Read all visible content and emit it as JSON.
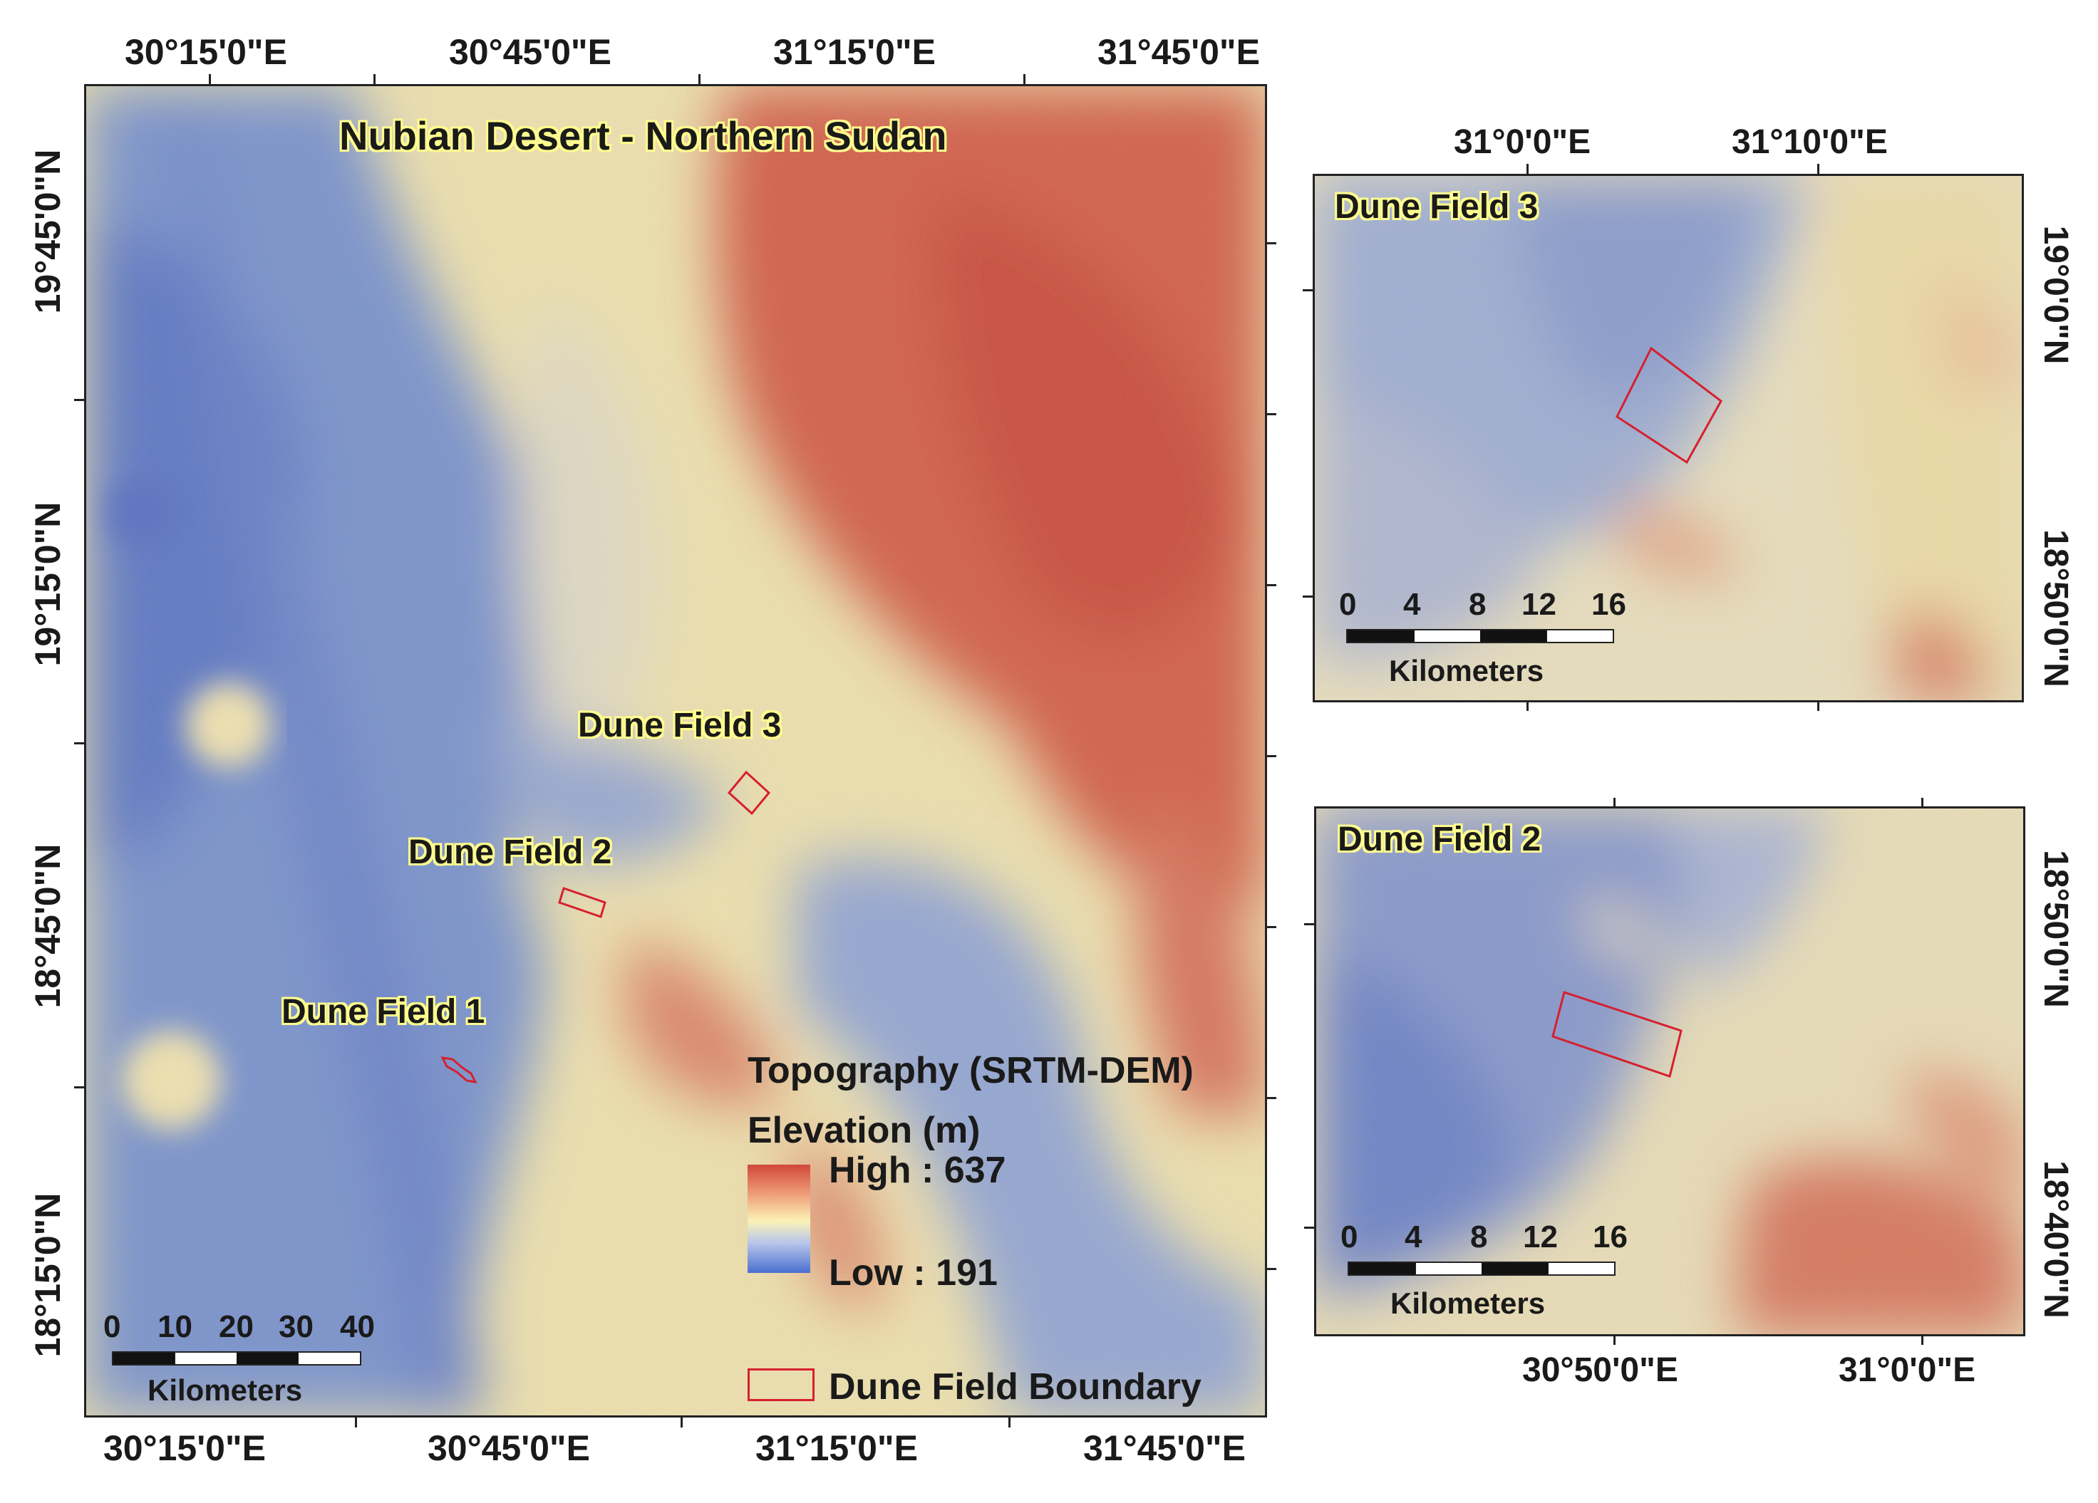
{
  "main_map": {
    "title": "Nubian Desert - Northern Sudan",
    "top_lon_labels": [
      "30°15'0\"E",
      "30°45'0\"E",
      "31°15'0\"E",
      "31°45'0\"E"
    ],
    "bottom_lon_labels": [
      "30°15'0\"E",
      "30°45'0\"E",
      "31°15'0\"E",
      "31°45'0\"E"
    ],
    "lat_labels": [
      "19°45'0\"N",
      "19°15'0\"N",
      "18°45'0\"N",
      "18°15'0\"N"
    ],
    "dune_labels": [
      "Dune Field 3",
      "Dune Field 2",
      "Dune Field 1"
    ],
    "scale": {
      "ticks": [
        "0",
        "10",
        "20",
        "30",
        "40"
      ],
      "unit": "Kilometers"
    },
    "legend": {
      "heading": "Topography (SRTM-DEM)",
      "subheading": "Elevation (m)",
      "high_label": "High : 637",
      "low_label": "Low : 191",
      "boundary_label": "Dune Field Boundary",
      "high_color": "#d2473a",
      "mid_color": "#fbf2b6",
      "low_color": "#4a6fd0",
      "boundary_color": "#d6202e"
    }
  },
  "inset_field3": {
    "title": "Dune Field 3",
    "top_lon_labels": [
      "31°0'0\"E",
      "31°10'0\"E"
    ],
    "right_lat_labels": [
      "19°0'0\"N",
      "18°50'0\"N"
    ],
    "scale": {
      "ticks": [
        "0",
        "4",
        "8",
        "12",
        "16"
      ],
      "unit": "Kilometers"
    }
  },
  "inset_field2": {
    "title": "Dune Field 2",
    "bottom_lon_labels": [
      "30°50'0\"E",
      "31°0'0\"E"
    ],
    "right_lat_labels": [
      "18°50'0\"N",
      "18°40'0\"N"
    ],
    "scale": {
      "ticks": [
        "0",
        "4",
        "8",
        "12",
        "16"
      ],
      "unit": "Kilometers"
    }
  }
}
